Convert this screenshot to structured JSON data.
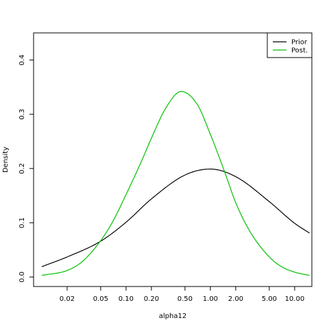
{
  "chart_data": {
    "type": "line",
    "title": "",
    "xlabel": "alpha12",
    "ylabel": "Density",
    "x_scale": "log",
    "xlim": [
      0.008,
      16
    ],
    "ylim": [
      0.0,
      0.45
    ],
    "x_ticks": [
      0.02,
      0.05,
      0.1,
      0.2,
      0.5,
      1.0,
      2.0,
      5.0,
      10.0
    ],
    "x_tick_labels": [
      "0.02",
      "0.05",
      "0.10",
      "0.20",
      "0.50",
      "1.00",
      "2.00",
      "5.00",
      "10.00"
    ],
    "y_ticks": [
      0.0,
      0.1,
      0.2,
      0.3,
      0.4
    ],
    "y_tick_labels": [
      "0.0",
      "0.1",
      "0.2",
      "0.3",
      "0.4"
    ],
    "grid": false,
    "legend_position": "top-right",
    "series": [
      {
        "name": "Prior",
        "color": "#000000",
        "x": [
          0.01,
          0.02,
          0.05,
          0.1,
          0.2,
          0.5,
          1.0,
          2.0,
          5.0,
          10.0,
          15.0
        ],
        "y": [
          0.019,
          0.037,
          0.066,
          0.101,
          0.144,
          0.188,
          0.199,
          0.185,
          0.139,
          0.099,
          0.081
        ]
      },
      {
        "name": "Post.",
        "color": "#00c000",
        "x": [
          0.01,
          0.02,
          0.03,
          0.05,
          0.07,
          0.1,
          0.15,
          0.2,
          0.3,
          0.45,
          0.7,
          1.0,
          1.5,
          2.0,
          3.0,
          5.0,
          7.0,
          10.0,
          15.0
        ],
        "y": [
          0.003,
          0.012,
          0.028,
          0.067,
          0.103,
          0.152,
          0.211,
          0.256,
          0.313,
          0.342,
          0.318,
          0.263,
          0.191,
          0.137,
          0.082,
          0.037,
          0.019,
          0.009,
          0.003
        ]
      }
    ]
  }
}
